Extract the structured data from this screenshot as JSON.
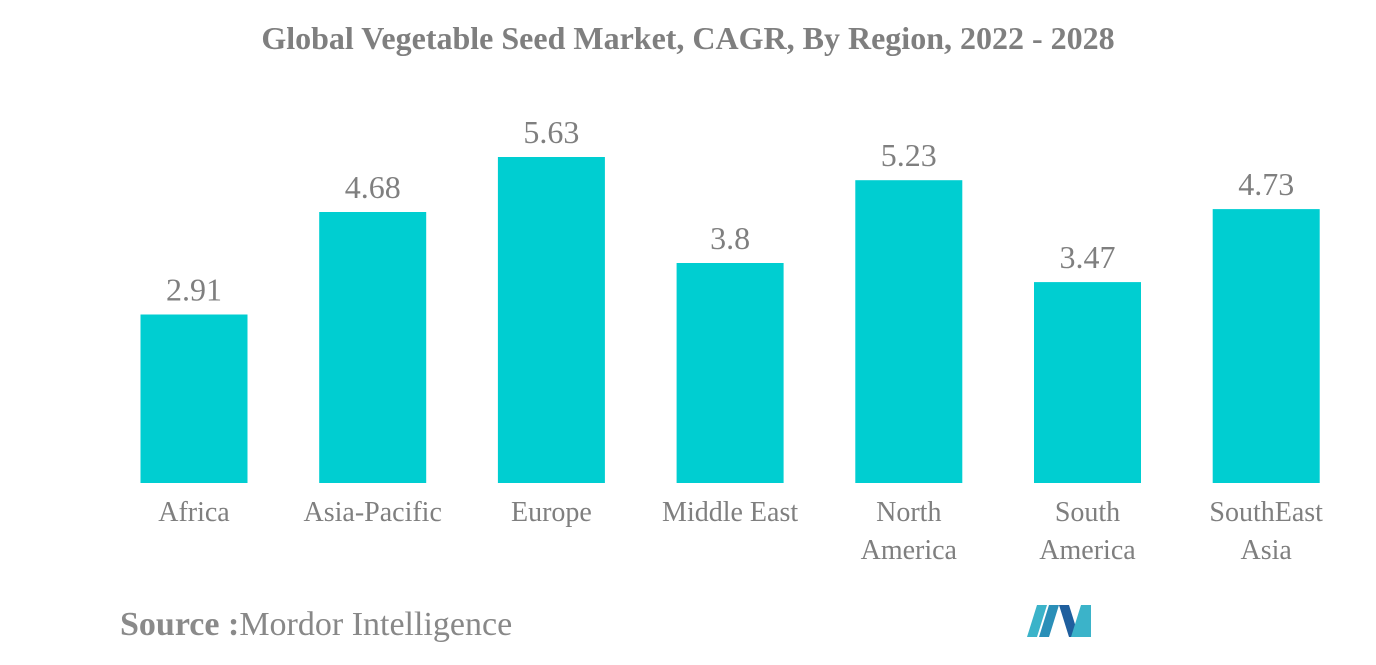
{
  "chart_data": {
    "type": "bar",
    "title": "Global Vegetable Seed Market, CAGR, By Region, 2022 - 2028",
    "categories": [
      "Africa",
      "Asia-Pacific",
      "Europe",
      "Middle East",
      "North America",
      "South America",
      "SouthEast Asia"
    ],
    "category_lines": [
      [
        "Africa"
      ],
      [
        "Asia-Pacific"
      ],
      [
        "Europe"
      ],
      [
        "Middle East"
      ],
      [
        "North",
        "America"
      ],
      [
        "South",
        "America"
      ],
      [
        "SouthEast",
        "Asia"
      ]
    ],
    "values": [
      2.91,
      4.68,
      5.63,
      3.8,
      5.23,
      3.47,
      4.73
    ],
    "value_labels": [
      "2.91",
      "4.68",
      "5.63",
      "3.8",
      "5.23",
      "3.47",
      "4.73"
    ],
    "xlabel": "",
    "ylabel": "",
    "grid": false,
    "bar_color": "#00ced1",
    "label_color": "#7f7f7f"
  },
  "source": {
    "label": "Source :",
    "text": "Mordor Intelligence"
  },
  "logo": {
    "icon": "mordor-intelligence-logo",
    "colors": [
      "#3bb3c9",
      "#2a8fb8",
      "#1f5f9e"
    ]
  }
}
